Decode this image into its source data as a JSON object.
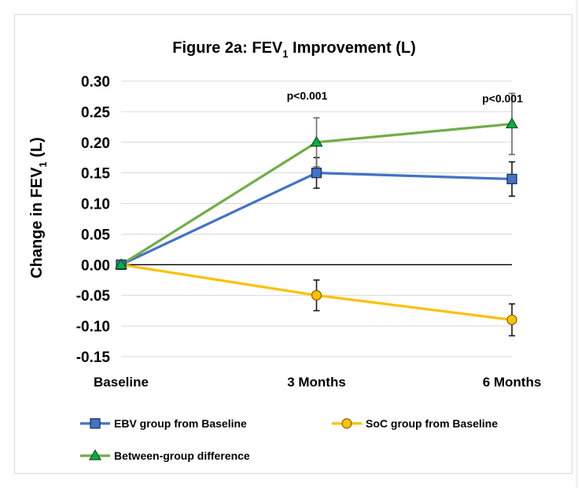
{
  "chart_data": {
    "type": "line",
    "title": "Figure 2a: FEV",
    "title_subscript": "1",
    "title_suffix": " Improvement (L)",
    "ylabel": "Change in FEV",
    "ylabel_subscript": "1",
    "ylabel_suffix": " (L)",
    "categories": [
      "Baseline",
      "3 Months",
      "6 Months"
    ],
    "ylim": [
      -0.15,
      0.3
    ],
    "ytick_step": 0.05,
    "gridlines": true,
    "legend_position": "bottom",
    "series": [
      {
        "name": "EBV group from Baseline",
        "values": [
          0.0,
          0.15,
          0.14
        ],
        "error": [
          null,
          0.025,
          0.028
        ],
        "color": "#4472c4",
        "marker_fill": "#4472c4",
        "marker_stroke": "#1f2f5a",
        "marker": "square"
      },
      {
        "name": "SoC group from Baseline",
        "values": [
          0.0,
          -0.05,
          -0.09
        ],
        "error": [
          null,
          0.025,
          0.026
        ],
        "color": "#ffc000",
        "marker_fill": "#ffc000",
        "marker_stroke": "#7f5f00",
        "marker": "circle"
      },
      {
        "name": "Between-group difference",
        "values": [
          0.0,
          0.2,
          0.23
        ],
        "error": [
          null,
          0.04,
          0.05
        ],
        "color": "#70ad47",
        "marker_fill": "#00b050",
        "marker_stroke": "#1f4d10",
        "marker": "triangle"
      }
    ],
    "annotations": [
      {
        "category": "3 Months",
        "text": "p<0.001",
        "y": 0.27
      },
      {
        "category": "6 Months",
        "text": "p<0.001",
        "y": 0.265
      }
    ]
  }
}
